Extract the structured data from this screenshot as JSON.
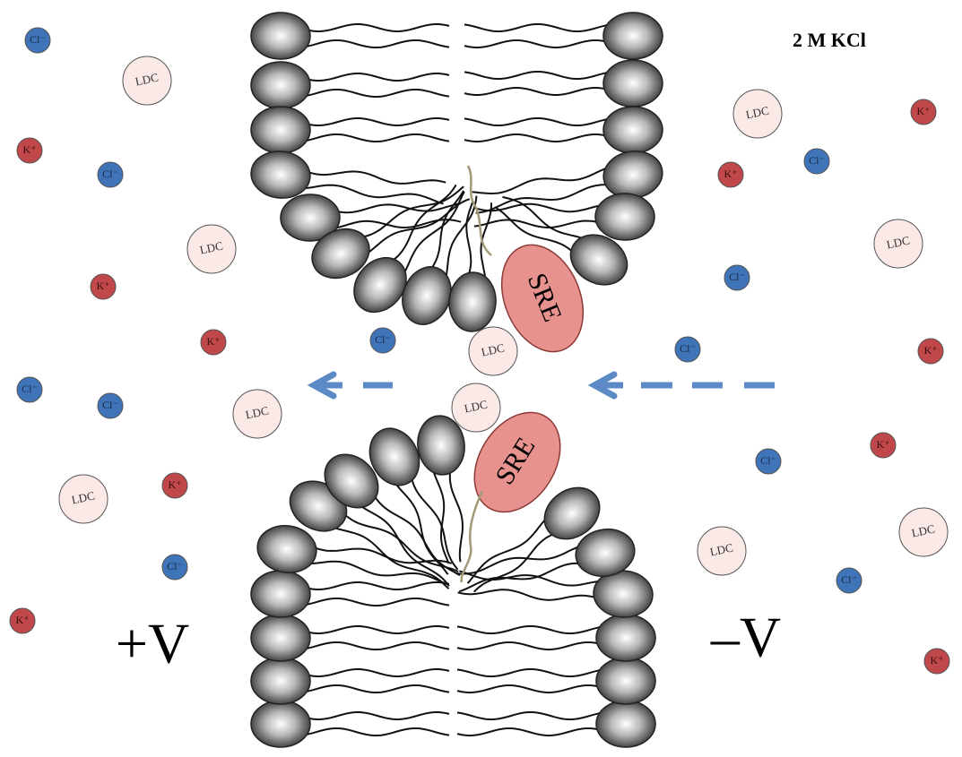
{
  "label": "2 M KCl",
  "electrodes": {
    "positive": "+V",
    "negative": "–V"
  },
  "proteins": [
    "SRE",
    "SRE"
  ],
  "chloride_ions": [
    "Cl⁻",
    "Cl⁻",
    "Cl⁻",
    "Cl⁻",
    "Cl⁻",
    "Cl⁻",
    "Cl⁻",
    "Cl⁻",
    "Cl⁻",
    "Cl⁻",
    "Cl⁻"
  ],
  "potassium_ions": [
    "K⁺",
    "K⁺",
    "K⁺",
    "K⁺",
    "K⁺",
    "K⁺",
    "K⁺",
    "K⁺",
    "K⁺",
    "K⁺"
  ],
  "ldc_molecules": [
    "LDC",
    "LDC",
    "LDC",
    "LDC",
    "LDC",
    "LDC",
    "LDC",
    "LDC",
    "LDC",
    "LDC"
  ]
}
